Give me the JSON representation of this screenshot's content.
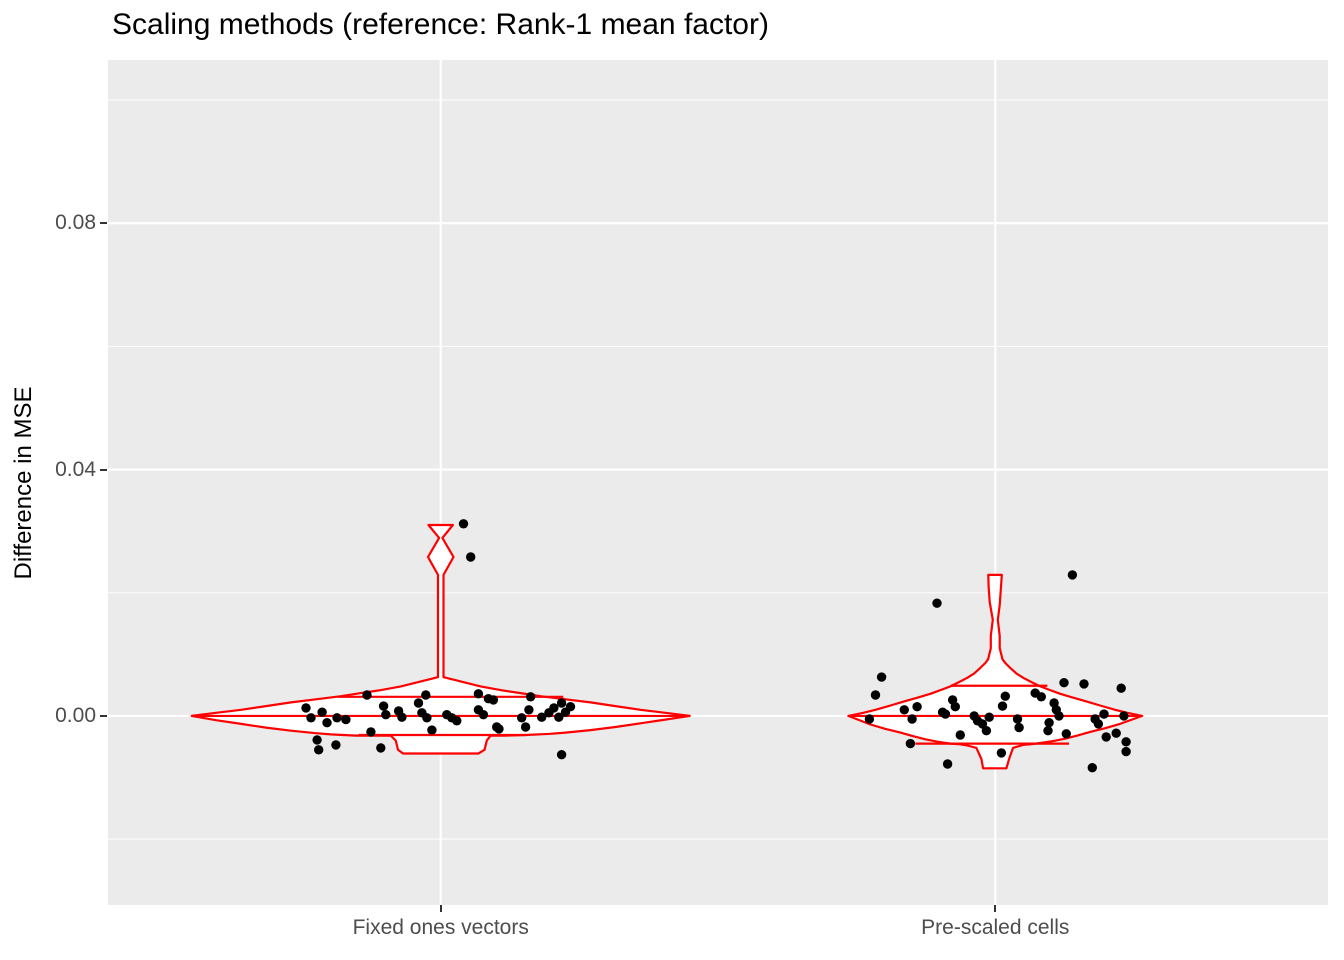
{
  "title": "Scaling methods (reference: Rank-1 mean factor)",
  "axes": {
    "y_title": "Difference in MSE",
    "y_tick_labels": [
      "0.08",
      "0.04",
      "0.00"
    ],
    "x_tick_labels": [
      "Fixed ones vectors",
      "Pre-scaled cells"
    ]
  },
  "colors": {
    "panel_bg": "#EBEBEB",
    "grid_major": "#FFFFFF",
    "grid_minor": "#FFFFFF",
    "violin_stroke": "#FF0000",
    "violin_fill": "#FFFFFF",
    "point": "#000000",
    "tick_text": "#4D4D4D",
    "tick_mark": "#333333",
    "title_text": "#000000"
  },
  "chart_data": {
    "type": "violin",
    "subtype": "violin with quantile lines and jittered points",
    "title": "Scaling methods (reference: Rank-1 mean factor)",
    "xlabel": "",
    "ylabel": "Difference in MSE",
    "categories": [
      "Fixed ones vectors",
      "Pre-scaled cells"
    ],
    "x_positions": [
      1,
      2
    ],
    "xlim": [
      0.4,
      2.6
    ],
    "ylim": [
      -0.0307,
      0.1065
    ],
    "y_major_ticks": [
      0.08,
      0.04,
      0.0
    ],
    "y_minor_ticks": [
      0.1,
      0.06,
      0.02,
      -0.02
    ],
    "grid": "white major+minor horizontal lines, white vertical major at categories, grey panel",
    "legend_position": "none",
    "series": [
      {
        "name": "Fixed ones vectors",
        "quantiles": [
          {
            "v": 0.0031,
            "from": -0.185,
            "to": 0.221
          },
          {
            "v": 0.0,
            "from": -0.449,
            "to": 0.449
          },
          {
            "v": -0.0031,
            "from": -0.148,
            "to": 0.155
          }
        ],
        "outline": [
          [
            -0.449,
            0
          ],
          [
            -0.405,
            0.0005
          ],
          [
            -0.36,
            0.001
          ],
          [
            -0.315,
            0.0016
          ],
          [
            -0.27,
            0.0022
          ],
          [
            -0.225,
            0.0027
          ],
          [
            -0.18,
            0.0032
          ],
          [
            -0.144,
            0.0037
          ],
          [
            -0.108,
            0.0042
          ],
          [
            -0.072,
            0.0048
          ],
          [
            -0.045,
            0.0054
          ],
          [
            -0.027,
            0.0058
          ],
          [
            -0.014,
            0.0061
          ],
          [
            -0.005,
            0.0063
          ],
          [
            -0.005,
            0.0229
          ],
          [
            -0.023,
            0.0258
          ],
          [
            -0.003,
            0.0289
          ],
          [
            -0.022,
            0.031
          ],
          [
            0.022,
            0.031
          ],
          [
            0.003,
            0.0289
          ],
          [
            0.023,
            0.0258
          ],
          [
            0.005,
            0.0229
          ],
          [
            0.005,
            0.0063
          ],
          [
            0.014,
            0.0061
          ],
          [
            0.027,
            0.0058
          ],
          [
            0.045,
            0.0054
          ],
          [
            0.072,
            0.0048
          ],
          [
            0.108,
            0.0042
          ],
          [
            0.144,
            0.0037
          ],
          [
            0.18,
            0.0032
          ],
          [
            0.225,
            0.0027
          ],
          [
            0.27,
            0.0022
          ],
          [
            0.315,
            0.0016
          ],
          [
            0.36,
            0.001
          ],
          [
            0.405,
            0.0005
          ],
          [
            0.449,
            0
          ],
          [
            0.405,
            -0.0006
          ],
          [
            0.36,
            -0.0012
          ],
          [
            0.315,
            -0.0018
          ],
          [
            0.27,
            -0.0023
          ],
          [
            0.225,
            -0.0027
          ],
          [
            0.198,
            -0.0029
          ],
          [
            0.153,
            -0.0031
          ],
          [
            0.117,
            -0.0032
          ],
          [
            0.09,
            -0.0032
          ],
          [
            0.083,
            -0.004
          ],
          [
            0.079,
            -0.0055
          ],
          [
            0.068,
            -0.0061
          ],
          [
            -0.068,
            -0.0061
          ],
          [
            -0.077,
            -0.0055
          ],
          [
            -0.081,
            -0.004
          ],
          [
            -0.09,
            -0.0032
          ],
          [
            -0.117,
            -0.0032
          ],
          [
            -0.153,
            -0.0032
          ],
          [
            -0.198,
            -0.003
          ],
          [
            -0.225,
            -0.0028
          ],
          [
            -0.27,
            -0.0024
          ],
          [
            -0.315,
            -0.0019
          ],
          [
            -0.36,
            -0.0013
          ],
          [
            -0.405,
            -0.0007
          ]
        ],
        "points": [
          [
            0.041,
            0.0312
          ],
          [
            0.054,
            0.0258
          ],
          [
            -0.133,
            0.0034
          ],
          [
            -0.027,
            0.0034
          ],
          [
            0.068,
            0.0036
          ],
          [
            0.095,
            0.0026
          ],
          [
            0.162,
            0.0031
          ],
          [
            0.218,
            0.0021
          ],
          [
            0.234,
            0.0015
          ],
          [
            -0.243,
            0.0013
          ],
          [
            -0.234,
            -0.0003
          ],
          [
            -0.214,
            0.0006
          ],
          [
            -0.205,
            -0.0011
          ],
          [
            -0.187,
            -0.0003
          ],
          [
            -0.171,
            -0.0006
          ],
          [
            -0.103,
            0.0016
          ],
          [
            -0.099,
            0.0002
          ],
          [
            -0.076,
            0.0008
          ],
          [
            -0.07,
            -0.0002
          ],
          [
            -0.04,
            0.0021
          ],
          [
            -0.034,
            0.0005
          ],
          [
            -0.025,
            -0.0003
          ],
          [
            -0.016,
            -0.0023
          ],
          [
            0.011,
            0.0002
          ],
          [
            0.02,
            -0.0003
          ],
          [
            0.029,
            -0.0008
          ],
          [
            0.068,
            0.001
          ],
          [
            0.077,
            0.0002
          ],
          [
            0.086,
            0.0028
          ],
          [
            0.101,
            -0.0018
          ],
          [
            0.146,
            -0.0003
          ],
          [
            0.153,
            -0.0018
          ],
          [
            0.159,
            0.001
          ],
          [
            0.182,
            -0.0002
          ],
          [
            0.195,
            0.0005
          ],
          [
            0.204,
            0.0013
          ],
          [
            0.213,
            -0.0002
          ],
          [
            0.225,
            0.0006
          ],
          [
            -0.223,
            -0.0039
          ],
          [
            -0.22,
            -0.0055
          ],
          [
            -0.189,
            -0.0047
          ],
          [
            -0.126,
            -0.0026
          ],
          [
            -0.108,
            -0.0052
          ],
          [
            0.105,
            -0.0021
          ],
          [
            0.218,
            -0.0063
          ]
        ]
      },
      {
        "name": "Pre-scaled cells",
        "quantiles": [
          {
            "v": 0.0049,
            "from": -0.081,
            "to": 0.094
          },
          {
            "v": 0.0,
            "from": -0.265,
            "to": 0.265
          },
          {
            "v": -0.0045,
            "from": -0.144,
            "to": 0.133
          }
        ],
        "outline": [
          [
            -0.265,
            0
          ],
          [
            -0.238,
            0.0005
          ],
          [
            -0.216,
            0.001
          ],
          [
            -0.189,
            0.0017
          ],
          [
            -0.162,
            0.0024
          ],
          [
            -0.139,
            0.003
          ],
          [
            -0.117,
            0.0036
          ],
          [
            -0.099,
            0.0042
          ],
          [
            -0.081,
            0.0048
          ],
          [
            -0.065,
            0.0055
          ],
          [
            -0.05,
            0.0062
          ],
          [
            -0.038,
            0.0069
          ],
          [
            -0.027,
            0.0078
          ],
          [
            -0.018,
            0.0086
          ],
          [
            -0.013,
            0.0092
          ],
          [
            -0.008,
            0.011
          ],
          [
            -0.008,
            0.013
          ],
          [
            -0.0045,
            0.0156
          ],
          [
            -0.01,
            0.0185
          ],
          [
            -0.012,
            0.021
          ],
          [
            -0.0126,
            0.0229
          ],
          [
            0.0117,
            0.0229
          ],
          [
            0.01,
            0.0205
          ],
          [
            0.008,
            0.018
          ],
          [
            0.0045,
            0.0156
          ],
          [
            0.008,
            0.013
          ],
          [
            0.008,
            0.011
          ],
          [
            0.013,
            0.0092
          ],
          [
            0.018,
            0.0086
          ],
          [
            0.027,
            0.0078
          ],
          [
            0.038,
            0.0069
          ],
          [
            0.05,
            0.0062
          ],
          [
            0.065,
            0.0055
          ],
          [
            0.081,
            0.0048
          ],
          [
            0.099,
            0.0042
          ],
          [
            0.117,
            0.0036
          ],
          [
            0.139,
            0.003
          ],
          [
            0.162,
            0.0024
          ],
          [
            0.189,
            0.0017
          ],
          [
            0.216,
            0.001
          ],
          [
            0.238,
            0.0005
          ],
          [
            0.265,
            0
          ],
          [
            0.225,
            -0.0013
          ],
          [
            0.198,
            -0.002
          ],
          [
            0.171,
            -0.0026
          ],
          [
            0.148,
            -0.0032
          ],
          [
            0.126,
            -0.0037
          ],
          [
            0.103,
            -0.0041
          ],
          [
            0.081,
            -0.0044
          ],
          [
            0.063,
            -0.0046
          ],
          [
            0.05,
            -0.0047
          ],
          [
            0.032,
            -0.0052
          ],
          [
            0.025,
            -0.007
          ],
          [
            0.02,
            -0.0085
          ],
          [
            -0.022,
            -0.0085
          ],
          [
            -0.025,
            -0.007
          ],
          [
            -0.034,
            -0.0052
          ],
          [
            -0.05,
            -0.0048
          ],
          [
            -0.063,
            -0.0046
          ],
          [
            -0.081,
            -0.0045
          ],
          [
            -0.103,
            -0.0042
          ],
          [
            -0.126,
            -0.0038
          ],
          [
            -0.148,
            -0.0033
          ],
          [
            -0.171,
            -0.0027
          ],
          [
            -0.198,
            -0.0021
          ],
          [
            -0.225,
            -0.0014
          ]
        ],
        "points": [
          [
            0.139,
            0.0229
          ],
          [
            -0.105,
            0.0183
          ],
          [
            -0.205,
            0.0063
          ],
          [
            -0.216,
            0.0034
          ],
          [
            -0.227,
            -0.0005
          ],
          [
            -0.164,
            0.001
          ],
          [
            -0.15,
            -0.0005
          ],
          [
            -0.141,
            0.0015
          ],
          [
            -0.153,
            -0.0045
          ],
          [
            -0.095,
            0.0006
          ],
          [
            -0.09,
            0.0003
          ],
          [
            -0.077,
            0.0026
          ],
          [
            -0.072,
            0.0015
          ],
          [
            -0.086,
            -0.0078
          ],
          [
            -0.063,
            -0.0031
          ],
          [
            -0.038,
            0.0
          ],
          [
            -0.032,
            -0.0008
          ],
          [
            -0.023,
            -0.0013
          ],
          [
            -0.016,
            -0.0024
          ],
          [
            -0.011,
            -0.0002
          ],
          [
            0.011,
            -0.006
          ],
          [
            0.018,
            0.0032
          ],
          [
            0.013,
            0.0016
          ],
          [
            0.04,
            -0.0005
          ],
          [
            0.043,
            -0.0019
          ],
          [
            0.072,
            0.0037
          ],
          [
            0.083,
            0.0031
          ],
          [
            0.097,
            -0.0011
          ],
          [
            0.095,
            -0.0024
          ],
          [
            0.106,
            0.0021
          ],
          [
            0.11,
            0.001
          ],
          [
            0.115,
            0.0
          ],
          [
            0.124,
            0.0054
          ],
          [
            0.128,
            -0.0029
          ],
          [
            0.16,
            0.0052
          ],
          [
            0.175,
            -0.0084
          ],
          [
            0.18,
            -0.0005
          ],
          [
            0.186,
            -0.0013
          ],
          [
            0.196,
            0.0003
          ],
          [
            0.2,
            -0.0034
          ],
          [
            0.218,
            -0.0028
          ],
          [
            0.227,
            0.0045
          ],
          [
            0.232,
            0.0
          ],
          [
            0.236,
            -0.0042
          ],
          [
            0.236,
            -0.0058
          ]
        ]
      }
    ]
  }
}
